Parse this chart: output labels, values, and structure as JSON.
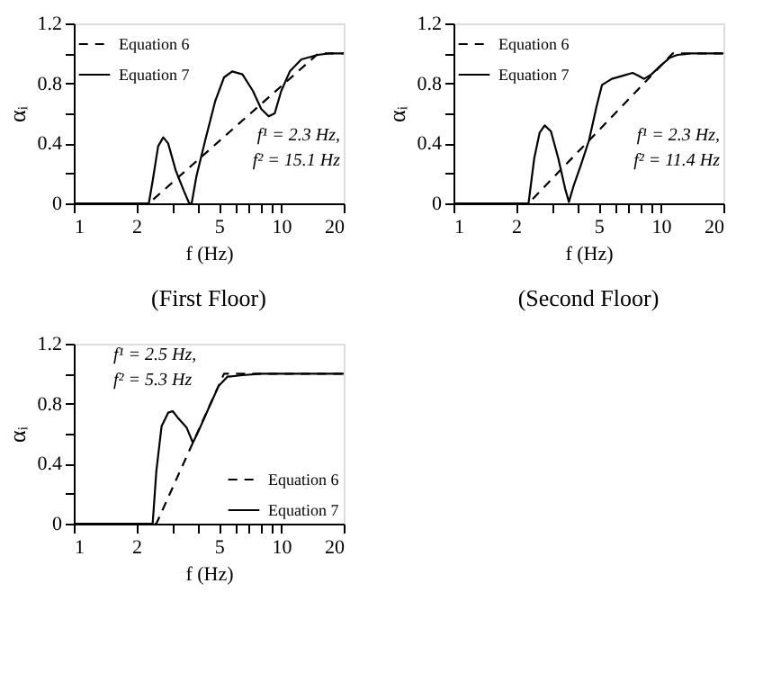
{
  "chart_data": [
    {
      "type": "line",
      "title": "(First Floor)",
      "xlabel": "f (Hz)",
      "ylabel": "αᵢ",
      "log": "x",
      "grid": false,
      "legend": "top left",
      "marker": "none",
      "xlim": [
        1,
        20
      ],
      "xticks": [
        1,
        2,
        {
          "value": 3,
          "label": null
        },
        {
          "value": 4,
          "label": null
        },
        5,
        {
          "value": 6,
          "label": null
        },
        {
          "value": 7,
          "label": null
        },
        {
          "value": 8,
          "label": null
        },
        {
          "value": 9,
          "label": null
        },
        10,
        20
      ],
      "ylim": [
        0,
        1.2
      ],
      "yticks": [
        0,
        {
          "value": 0.2,
          "label": null
        },
        0.4,
        {
          "value": 0.6,
          "label": null
        },
        0.8,
        {
          "value": 1.0,
          "label": null
        },
        1.2
      ],
      "annotations": [
        "f¹ = 2.3 Hz,",
        "f² = 15.1 Hz"
      ],
      "series": [
        {
          "name": "Equation 6",
          "color": "#000000",
          "line_style": "dashed",
          "x": [
            1,
            2.3,
            15.1,
            20
          ],
          "values": [
            0,
            0,
            1,
            1
          ]
        },
        {
          "name": "Equation 7",
          "color": "#000000",
          "line_style": "solid",
          "x": [
            1,
            2.3,
            2.4,
            2.55,
            2.7,
            2.85,
            3.1,
            3.4,
            3.6,
            3.7,
            3.9,
            4.3,
            4.8,
            5.3,
            5.8,
            6.5,
            7.3,
            8,
            8.7,
            9.3,
            10,
            11,
            12.5,
            15,
            17,
            20
          ],
          "values": [
            0,
            0,
            0.15,
            0.38,
            0.44,
            0.4,
            0.22,
            0.08,
            0,
            0,
            0.18,
            0.42,
            0.68,
            0.84,
            0.88,
            0.86,
            0.75,
            0.63,
            0.58,
            0.6,
            0.75,
            0.88,
            0.96,
            0.99,
            1,
            1
          ]
        }
      ]
    },
    {
      "type": "line",
      "title": "(Second Floor)",
      "xlabel": "f (Hz)",
      "ylabel": "αᵢ",
      "log": "x",
      "grid": false,
      "legend": "top left",
      "marker": "none",
      "xlim": [
        1,
        20
      ],
      "xticks": [
        1,
        2,
        {
          "value": 3,
          "label": null
        },
        {
          "value": 4,
          "label": null
        },
        5,
        {
          "value": 6,
          "label": null
        },
        {
          "value": 7,
          "label": null
        },
        {
          "value": 8,
          "label": null
        },
        {
          "value": 9,
          "label": null
        },
        10,
        20
      ],
      "ylim": [
        0,
        1.2
      ],
      "yticks": [
        0,
        {
          "value": 0.2,
          "label": null
        },
        0.4,
        {
          "value": 0.6,
          "label": null
        },
        0.8,
        {
          "value": 1.0,
          "label": null
        },
        1.2
      ],
      "annotations": [
        "f¹ = 2.3 Hz,",
        "f² = 11.4 Hz"
      ],
      "series": [
        {
          "name": "Equation 6",
          "color": "#000000",
          "line_style": "dashed",
          "x": [
            1,
            2.3,
            11.4,
            20
          ],
          "values": [
            0,
            0,
            1,
            1
          ]
        },
        {
          "name": "Equation 7",
          "color": "#000000",
          "line_style": "solid",
          "x": [
            1,
            2.3,
            2.45,
            2.6,
            2.75,
            2.95,
            3.2,
            3.45,
            3.6,
            3.8,
            4.1,
            4.5,
            4.9,
            5.2,
            5.8,
            6.5,
            7.3,
            7.8,
            8.3,
            9,
            10,
            11,
            12,
            14,
            20
          ],
          "values": [
            0,
            0,
            0.3,
            0.47,
            0.52,
            0.48,
            0.3,
            0.1,
            0.01,
            0.12,
            0.25,
            0.42,
            0.65,
            0.79,
            0.83,
            0.85,
            0.87,
            0.85,
            0.83,
            0.86,
            0.92,
            0.97,
            0.99,
            1,
            1
          ]
        }
      ]
    },
    {
      "type": "line",
      "xlabel": "f (Hz)",
      "ylabel": "αᵢ",
      "log": "x",
      "grid": false,
      "legend": "bottom right",
      "marker": "none",
      "xlim": [
        1,
        20
      ],
      "xticks": [
        1,
        2,
        {
          "value": 3,
          "label": null
        },
        {
          "value": 4,
          "label": null
        },
        5,
        {
          "value": 6,
          "label": null
        },
        {
          "value": 7,
          "label": null
        },
        {
          "value": 8,
          "label": null
        },
        {
          "value": 9,
          "label": null
        },
        10,
        20
      ],
      "ylim": [
        0,
        1.2
      ],
      "yticks": [
        0,
        {
          "value": 0.2,
          "label": null
        },
        0.4,
        {
          "value": 0.6,
          "label": null
        },
        0.8,
        {
          "value": 1.0,
          "label": null
        },
        1.2
      ],
      "annotations": [
        "f¹ = 2.5 Hz,",
        "f² = 5.3 Hz"
      ],
      "series": [
        {
          "name": "Equation 6",
          "color": "#000000",
          "line_style": "dashed",
          "x": [
            1,
            2.5,
            5.3,
            20
          ],
          "values": [
            0,
            0,
            1,
            1
          ]
        },
        {
          "name": "Equation 7",
          "color": "#000000",
          "line_style": "solid",
          "x": [
            1,
            2.4,
            2.5,
            2.65,
            2.85,
            3.0,
            3.2,
            3.5,
            3.75,
            4.0,
            4.5,
            5.0,
            5.5,
            6.5,
            8,
            20
          ],
          "values": [
            0,
            0,
            0.35,
            0.65,
            0.74,
            0.75,
            0.7,
            0.64,
            0.54,
            0.62,
            0.78,
            0.92,
            0.98,
            0.99,
            1,
            1
          ]
        }
      ]
    }
  ]
}
